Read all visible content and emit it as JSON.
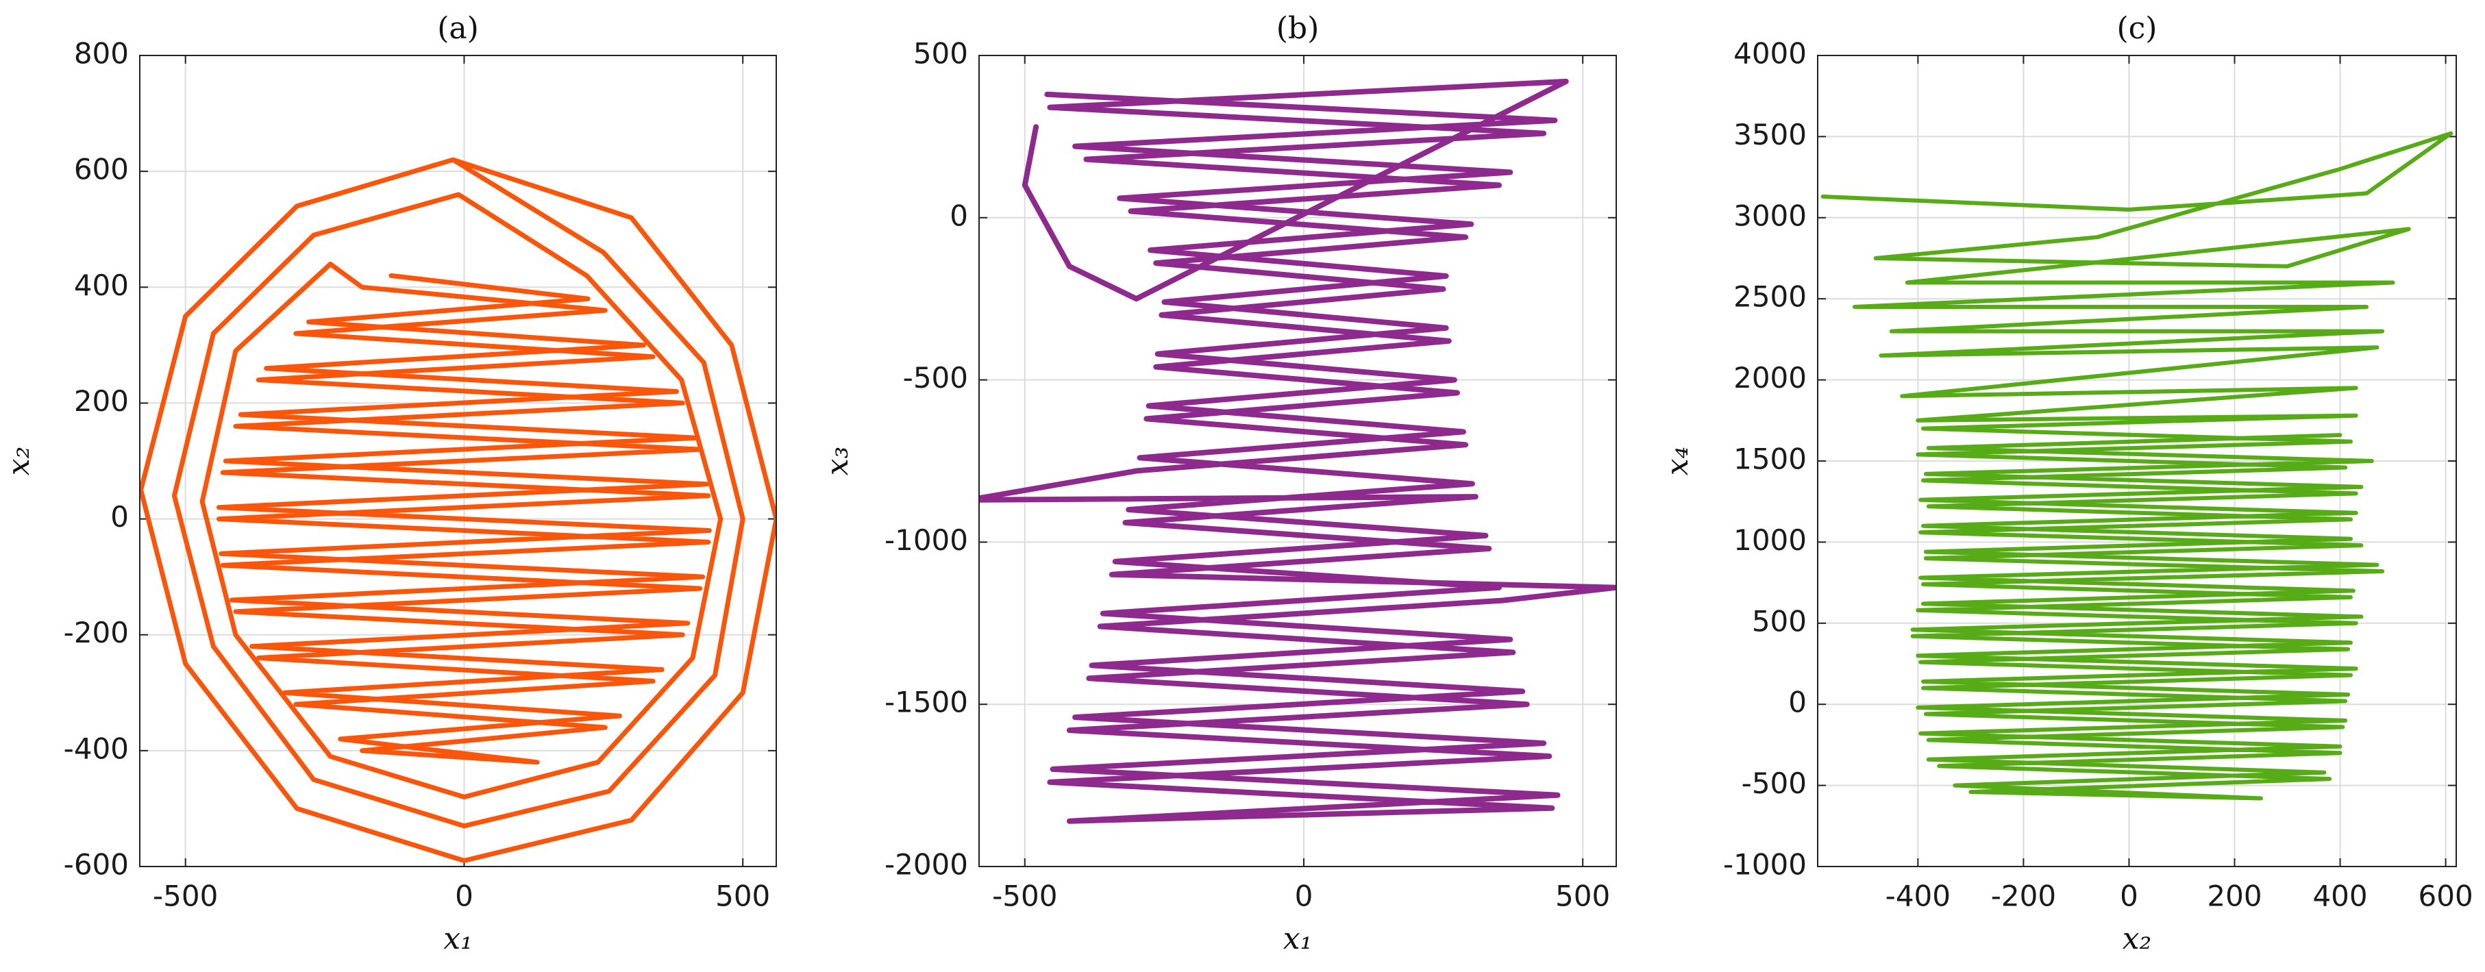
{
  "chart_data": [
    {
      "type": "line",
      "title": "(a)",
      "xlabel": "x₁",
      "ylabel": "x₂",
      "color": "#f9560b",
      "grid": true,
      "xlim": [
        -582,
        560
      ],
      "ylim": [
        -600,
        800
      ],
      "xticks": [
        -500,
        0,
        500
      ],
      "yticks": [
        -600,
        -400,
        -200,
        0,
        200,
        400,
        600,
        800
      ],
      "x": [
        -20,
        300,
        480,
        560,
        500,
        300,
        0,
        -300,
        -500,
        -580,
        -500,
        -300,
        -20,
        250,
        430,
        500,
        450,
        260,
        0,
        -270,
        -450,
        -520,
        -450,
        -270,
        -10,
        220,
        390,
        460,
        410,
        240,
        0,
        -240,
        -410,
        -470,
        -410,
        -240,
        -183,
        253,
        -302,
        339,
        -369,
        392,
        -410,
        423,
        -433,
        438,
        -440,
        438,
        -433,
        423,
        -410,
        392,
        -369,
        339,
        -302,
        253,
        -183,
        131,
        -222,
        279,
        -322,
        355,
        -381,
        401,
        -417,
        428,
        -436,
        440,
        -440,
        436,
        -428,
        417,
        -401,
        381,
        -355,
        322,
        -279,
        222,
        -131
      ],
      "y": [
        620,
        520,
        300,
        0,
        -300,
        -520,
        -590,
        -500,
        -250,
        50,
        350,
        540,
        620,
        460,
        270,
        0,
        -270,
        -470,
        -530,
        -450,
        -220,
        40,
        320,
        490,
        560,
        420,
        240,
        0,
        -240,
        -420,
        -480,
        -410,
        -200,
        30,
        290,
        440,
        400,
        360,
        320,
        280,
        240,
        200,
        160,
        120,
        80,
        40,
        0,
        -40,
        -80,
        -120,
        -160,
        -200,
        -240,
        -280,
        -320,
        -360,
        -400,
        -420,
        -380,
        -340,
        -300,
        -260,
        -220,
        -180,
        -140,
        -100,
        -60,
        -20,
        20,
        60,
        100,
        140,
        180,
        220,
        260,
        300,
        340,
        380,
        420
      ]
    },
    {
      "type": "line",
      "title": "(b)",
      "xlabel": "x₁",
      "ylabel": "x₃",
      "color": "#8e2a8e",
      "grid": true,
      "xlim": [
        -582,
        560
      ],
      "ylim": [
        -2000,
        500
      ],
      "xticks": [
        -500,
        0,
        500
      ],
      "yticks": [
        -2000,
        -1500,
        -1000,
        -500,
        0,
        500
      ],
      "x": [
        -480,
        -500,
        -420,
        -300,
        470,
        -455,
        430,
        -390,
        350,
        -310,
        290,
        -265,
        250,
        -255,
        260,
        -265,
        275,
        -282,
        290,
        -298,
        -600,
        308,
        -320,
        332,
        -344,
        560,
        356,
        -365,
        375,
        -385,
        400,
        -420,
        440,
        -455,
        445,
        -420,
        455,
        -450,
        430,
        -410,
        392,
        -380,
        370,
        -360,
        350,
        -338,
        326,
        -314,
        302,
        -294,
        286,
        -278,
        270,
        -262,
        255,
        -250,
        255,
        -275,
        300,
        -330,
        370,
        -410,
        450,
        -460
      ],
      "y": [
        280,
        100,
        -150,
        -250,
        420,
        340,
        260,
        180,
        100,
        20,
        -60,
        -140,
        -220,
        -300,
        -380,
        -460,
        -540,
        -620,
        -700,
        -780,
        -870,
        -860,
        -940,
        -1020,
        -1100,
        -1140,
        -1180,
        -1260,
        -1340,
        -1420,
        -1500,
        -1580,
        -1660,
        -1740,
        -1820,
        -1860,
        -1780,
        -1700,
        -1620,
        -1540,
        -1460,
        -1380,
        -1300,
        -1220,
        -1140,
        -1060,
        -980,
        -900,
        -820,
        -740,
        -660,
        -580,
        -500,
        -420,
        -340,
        -260,
        -180,
        -100,
        -20,
        60,
        140,
        220,
        300,
        380
      ]
    },
    {
      "type": "line",
      "title": "(c)",
      "xlabel": "x₂",
      "ylabel": "x₄",
      "color": "#57ab16",
      "grid": true,
      "xlim": [
        -590,
        620
      ],
      "ylim": [
        -1000,
        4000
      ],
      "xticks": [
        -400,
        -200,
        0,
        200,
        400,
        600
      ],
      "yticks": [
        -1000,
        -500,
        0,
        500,
        1000,
        1500,
        2000,
        2500,
        3000,
        3500,
        4000
      ],
      "x": [
        -580,
        0,
        450,
        610,
        400,
        -60,
        -480,
        300,
        530,
        -420,
        500,
        -520,
        450,
        -450,
        480,
        -470,
        470,
        -430,
        430,
        -400,
        430,
        -390,
        420,
        -400,
        410,
        -390,
        430,
        -380,
        420,
        -395,
        440,
        -385,
        480,
        -390,
        420,
        -400,
        430,
        -410,
        415,
        -395,
        420,
        -390,
        410,
        -385,
        405,
        -380,
        400,
        -360,
        380,
        -300,
        250,
        -330,
        370,
        -380,
        400,
        -395,
        410,
        -400,
        415,
        -390,
        430,
        -400,
        420,
        -410,
        440,
        -390,
        425,
        -395,
        470,
        -385,
        420,
        -390,
        430,
        -395,
        440,
        -385,
        460,
        -380,
        400
      ],
      "y": [
        3130,
        3050,
        3150,
        3520,
        3300,
        2880,
        2750,
        2700,
        2930,
        2600,
        2600,
        2450,
        2450,
        2300,
        2300,
        2150,
        2200,
        1900,
        1950,
        1750,
        1780,
        1700,
        1620,
        1540,
        1460,
        1380,
        1300,
        1220,
        1140,
        1060,
        980,
        900,
        820,
        740,
        660,
        580,
        500,
        420,
        340,
        260,
        180,
        100,
        20,
        -60,
        -140,
        -220,
        -300,
        -380,
        -460,
        -540,
        -580,
        -500,
        -420,
        -340,
        -260,
        -180,
        -100,
        -20,
        60,
        140,
        220,
        300,
        380,
        460,
        540,
        620,
        700,
        780,
        860,
        940,
        1020,
        1100,
        1180,
        1260,
        1340,
        1420,
        1500,
        1580,
        1660
      ]
    }
  ]
}
